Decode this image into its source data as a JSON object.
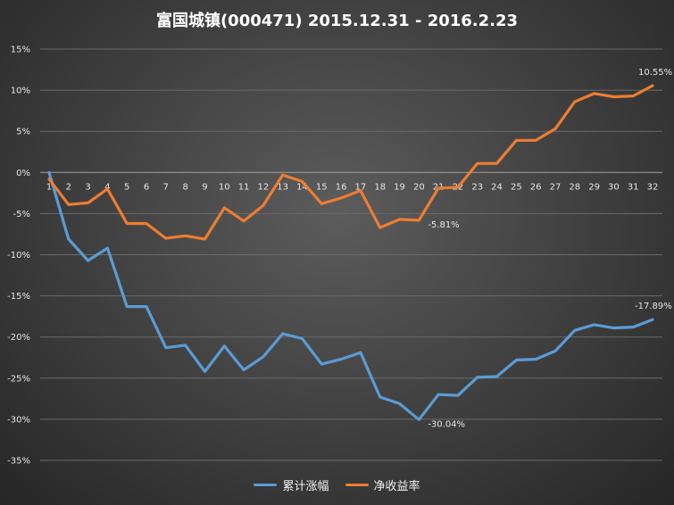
{
  "chart_data": {
    "type": "line",
    "title": "富国城镇(000471)  2015.12.31 - 2016.2.23",
    "xlabel": "",
    "ylabel": "",
    "ylim": [
      -35,
      15
    ],
    "ytick_step": 5,
    "grid": true,
    "legend_position": "bottom-center",
    "x": [
      "1",
      "2",
      "3",
      "4",
      "5",
      "6",
      "7",
      "8",
      "9",
      "10",
      "11",
      "12",
      "13",
      "14",
      "15",
      "16",
      "17",
      "18",
      "19",
      "20",
      "21",
      "22",
      "23",
      "24",
      "25",
      "26",
      "27",
      "28",
      "29",
      "30",
      "31",
      "32"
    ],
    "series": [
      {
        "name": "累计涨幅",
        "color": "#5b9bd5",
        "values": [
          0,
          -8.1,
          -10.7,
          -9.2,
          -16.3,
          -16.3,
          -21.3,
          -21.0,
          -24.2,
          -21.1,
          -24.0,
          -22.4,
          -19.6,
          -20.2,
          -23.3,
          -22.7,
          -21.9,
          -27.3,
          -28.1,
          -30.04,
          -27.0,
          -27.1,
          -24.9,
          -24.8,
          -22.8,
          -22.7,
          -21.7,
          -19.2,
          -18.5,
          -18.9,
          -18.8,
          -17.89
        ]
      },
      {
        "name": "净收益率",
        "color": "#ed7d31",
        "values": [
          -0.8,
          -3.9,
          -3.7,
          -2.0,
          -6.2,
          -6.2,
          -8.0,
          -7.7,
          -8.1,
          -4.3,
          -5.9,
          -4.0,
          -0.3,
          -1.1,
          -3.8,
          -3.1,
          -2.2,
          -6.7,
          -5.7,
          -5.81,
          -1.9,
          -1.8,
          1.1,
          1.1,
          3.9,
          3.9,
          5.3,
          8.6,
          9.6,
          9.2,
          9.3,
          10.55
        ]
      }
    ],
    "annotations": [
      {
        "series": 1,
        "index": 19,
        "text": "-5.81%"
      },
      {
        "series": 0,
        "index": 19,
        "text": "-30.04%"
      },
      {
        "series": 1,
        "index": 31,
        "text": "10.55%"
      },
      {
        "series": 0,
        "index": 31,
        "text": "-17.89%"
      }
    ]
  }
}
